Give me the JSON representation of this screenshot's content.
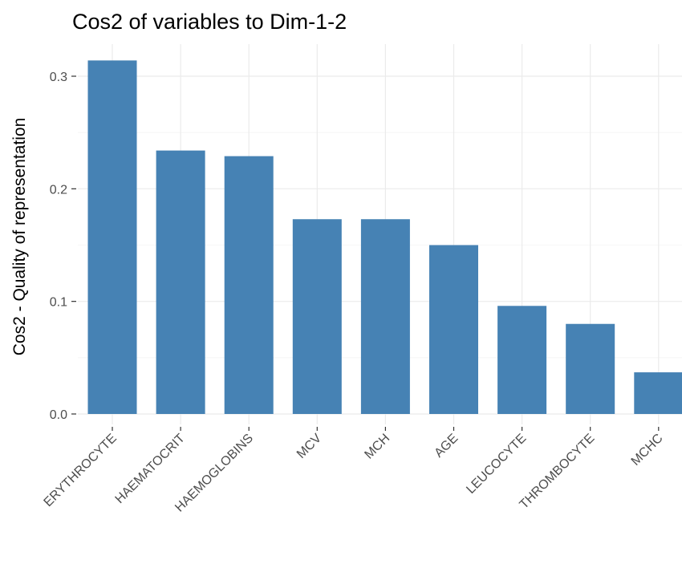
{
  "chart_data": {
    "type": "bar",
    "title": "Cos2 of variables to Dim-1-2",
    "xlabel": "",
    "ylabel": "Cos2 - Quality of representation",
    "categories": [
      "ERYTHROCYTE",
      "HAEMATOCRIT",
      "HAEMOGLOBINS",
      "MCV",
      "MCH",
      "AGE",
      "LEUCOCYTE",
      "THROMBOCYTE",
      "MCHC"
    ],
    "values": [
      0.314,
      0.234,
      0.229,
      0.173,
      0.173,
      0.15,
      0.096,
      0.08,
      0.037
    ],
    "ylim": [
      0,
      0.33
    ],
    "yticks": [
      0.0,
      0.1,
      0.2,
      0.3
    ],
    "ytick_labels": [
      "0.0",
      "0.1",
      "0.2",
      "0.3"
    ],
    "grid": true,
    "legend": "none",
    "colors": {
      "bar": "#4682b4"
    }
  }
}
